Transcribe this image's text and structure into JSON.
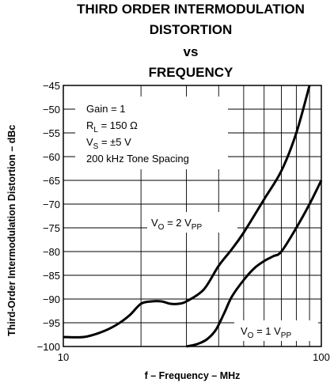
{
  "chart_data": {
    "type": "line",
    "title_lines": [
      "THIRD ORDER INTERMODULATION",
      "DISTORTION",
      "vs",
      "FREQUENCY"
    ],
    "xlabel": "f – Frequency – MHz",
    "ylabel": "Third-Order Intermodulation Distortion – dBc",
    "x_scale": "log",
    "xlim": [
      10,
      100
    ],
    "ylim": [
      -100,
      -45
    ],
    "x_tick_labels": [
      "10",
      "100"
    ],
    "y_tick_labels": [
      "-45",
      "-50",
      "-55",
      "-60",
      "-65",
      "-70",
      "-75",
      "-80",
      "-85",
      "-90",
      "-95",
      "-100"
    ],
    "y_ticks": [
      -45,
      -50,
      -55,
      -60,
      -65,
      -70,
      -75,
      -80,
      -85,
      -90,
      -95,
      -100
    ],
    "grid": true,
    "conditions": {
      "gain": "Gain = 1",
      "rl_pre": "R",
      "rl_sub": "L",
      "rl_post": " = 150 Ω",
      "vs_pre": "V",
      "vs_sub": "S",
      "vs_post": " = ±5 V",
      "spacing": "200 kHz Tone Spacing"
    },
    "series": [
      {
        "label_pre": "V",
        "label_sub": "O",
        "label_post": " = 2 V",
        "label_sub2": "PP",
        "x": [
          10,
          12,
          14,
          16,
          18,
          20,
          22,
          24,
          26,
          28,
          30,
          35,
          40,
          45,
          50,
          60,
          70,
          80,
          90
        ],
        "y": [
          -98,
          -98,
          -97,
          -95.5,
          -93.5,
          -91,
          -90.5,
          -90.5,
          -91,
          -91,
          -90.5,
          -88,
          -83,
          -79.5,
          -76,
          -69,
          -63,
          -55,
          -45
        ]
      },
      {
        "label_pre": "V",
        "label_sub": "O",
        "label_post": " = 1 V",
        "label_sub2": "PP",
        "x": [
          30,
          33,
          36,
          39,
          42,
          45,
          50,
          55,
          60,
          65,
          70,
          80,
          90,
          100
        ],
        "y": [
          -100,
          -99.5,
          -98.5,
          -96.5,
          -93,
          -89.5,
          -86,
          -83.5,
          -82,
          -81,
          -80,
          -75,
          -70,
          -65
        ]
      }
    ]
  }
}
